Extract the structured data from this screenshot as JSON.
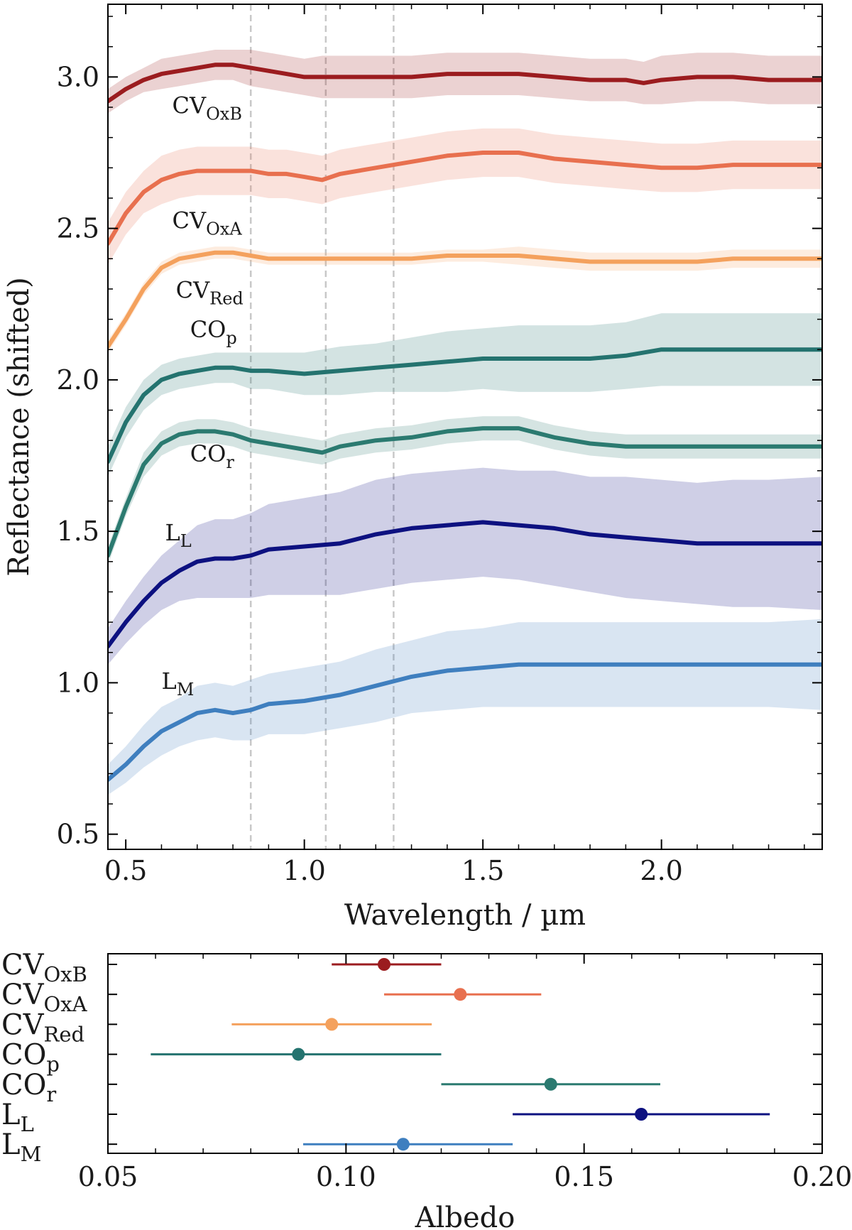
{
  "chart_data": [
    {
      "type": "line",
      "title": "",
      "xlabel": "Wavelength / µm",
      "ylabel": "Reflectance (shifted)",
      "xlim": [
        0.45,
        2.45
      ],
      "ylim": [
        0.45,
        3.24
      ],
      "xticks": [
        0.5,
        1.0,
        1.5,
        2.0
      ],
      "xtick_labels": [
        "0.5",
        "1.0",
        "1.5",
        "2.0"
      ],
      "yticks": [
        0.5,
        1.0,
        1.5,
        2.0,
        2.5,
        3.0
      ],
      "ytick_labels": [
        "0.5",
        "1.0",
        "1.5",
        "2.0",
        "2.5",
        "3.0"
      ],
      "vlines": [
        0.85,
        1.06,
        1.25
      ],
      "series": [
        {
          "name": "CV_OxB",
          "label_main": "CV",
          "label_sub": "OxB",
          "color": "#9b1c1f",
          "label_pos": [
            0.63,
            2.88
          ],
          "x": [
            0.45,
            0.5,
            0.55,
            0.6,
            0.65,
            0.7,
            0.75,
            0.8,
            0.85,
            0.9,
            0.95,
            1.0,
            1.05,
            1.1,
            1.2,
            1.3,
            1.4,
            1.5,
            1.6,
            1.7,
            1.8,
            1.9,
            1.95,
            2.0,
            2.1,
            2.2,
            2.3,
            2.45
          ],
          "y": [
            2.92,
            2.96,
            2.99,
            3.01,
            3.02,
            3.03,
            3.04,
            3.04,
            3.03,
            3.02,
            3.01,
            3.0,
            3.0,
            3.0,
            3.0,
            3.0,
            3.01,
            3.01,
            3.01,
            3.0,
            2.99,
            2.99,
            2.98,
            2.99,
            3.0,
            3.0,
            2.99,
            2.99
          ],
          "band": [
            0.04,
            0.04,
            0.04,
            0.05,
            0.05,
            0.05,
            0.05,
            0.05,
            0.06,
            0.06,
            0.06,
            0.06,
            0.07,
            0.07,
            0.07,
            0.07,
            0.07,
            0.07,
            0.07,
            0.07,
            0.07,
            0.07,
            0.07,
            0.08,
            0.08,
            0.08,
            0.08,
            0.08
          ]
        },
        {
          "name": "CV_OxA",
          "label_main": "CV",
          "label_sub": "OxA",
          "color": "#e8704f",
          "label_pos": [
            0.63,
            2.5
          ],
          "x": [
            0.45,
            0.5,
            0.55,
            0.6,
            0.65,
            0.7,
            0.75,
            0.8,
            0.85,
            0.9,
            0.95,
            1.0,
            1.05,
            1.1,
            1.2,
            1.3,
            1.4,
            1.5,
            1.6,
            1.7,
            1.8,
            1.9,
            2.0,
            2.1,
            2.2,
            2.3,
            2.45
          ],
          "y": [
            2.45,
            2.55,
            2.62,
            2.66,
            2.68,
            2.69,
            2.69,
            2.69,
            2.69,
            2.68,
            2.68,
            2.67,
            2.66,
            2.68,
            2.7,
            2.72,
            2.74,
            2.75,
            2.75,
            2.73,
            2.72,
            2.71,
            2.7,
            2.7,
            2.71,
            2.71,
            2.71
          ],
          "band": [
            0.07,
            0.07,
            0.07,
            0.08,
            0.08,
            0.08,
            0.08,
            0.08,
            0.08,
            0.08,
            0.08,
            0.08,
            0.08,
            0.08,
            0.08,
            0.08,
            0.08,
            0.08,
            0.08,
            0.08,
            0.08,
            0.08,
            0.08,
            0.08,
            0.08,
            0.08,
            0.08
          ]
        },
        {
          "name": "CV_Red",
          "label_main": "CV",
          "label_sub": "Red",
          "color": "#f4a15d",
          "label_pos": [
            0.64,
            2.27
          ],
          "x": [
            0.45,
            0.5,
            0.55,
            0.6,
            0.65,
            0.7,
            0.75,
            0.8,
            0.85,
            0.9,
            1.0,
            1.1,
            1.2,
            1.3,
            1.4,
            1.5,
            1.6,
            1.7,
            1.8,
            1.9,
            2.0,
            2.1,
            2.2,
            2.3,
            2.45
          ],
          "y": [
            2.11,
            2.2,
            2.3,
            2.37,
            2.4,
            2.41,
            2.42,
            2.42,
            2.41,
            2.4,
            2.4,
            2.4,
            2.4,
            2.4,
            2.41,
            2.41,
            2.41,
            2.4,
            2.39,
            2.39,
            2.39,
            2.39,
            2.4,
            2.4,
            2.4
          ],
          "band": [
            0.02,
            0.02,
            0.02,
            0.02,
            0.02,
            0.02,
            0.02,
            0.02,
            0.02,
            0.02,
            0.02,
            0.02,
            0.02,
            0.02,
            0.02,
            0.02,
            0.03,
            0.03,
            0.03,
            0.03,
            0.03,
            0.03,
            0.03,
            0.03,
            0.03
          ]
        },
        {
          "name": "CO_p",
          "label_main": "CO",
          "label_sub": "p",
          "color": "#24736f",
          "label_pos": [
            0.68,
            2.14
          ],
          "x": [
            0.45,
            0.5,
            0.55,
            0.6,
            0.65,
            0.7,
            0.75,
            0.8,
            0.85,
            0.9,
            1.0,
            1.1,
            1.2,
            1.3,
            1.4,
            1.5,
            1.6,
            1.7,
            1.8,
            1.9,
            2.0,
            2.1,
            2.2,
            2.3,
            2.45
          ],
          "y": [
            1.73,
            1.86,
            1.95,
            2.0,
            2.02,
            2.03,
            2.04,
            2.04,
            2.03,
            2.03,
            2.02,
            2.03,
            2.04,
            2.05,
            2.06,
            2.07,
            2.07,
            2.07,
            2.07,
            2.08,
            2.1,
            2.1,
            2.1,
            2.1,
            2.1
          ],
          "band": [
            0.05,
            0.05,
            0.05,
            0.05,
            0.05,
            0.05,
            0.05,
            0.05,
            0.06,
            0.06,
            0.07,
            0.08,
            0.08,
            0.09,
            0.1,
            0.1,
            0.11,
            0.11,
            0.11,
            0.11,
            0.12,
            0.12,
            0.12,
            0.12,
            0.12
          ]
        },
        {
          "name": "CO_r",
          "label_main": "CO",
          "label_sub": "r",
          "color": "#2b7a70",
          "label_pos": [
            0.68,
            1.73
          ],
          "x": [
            0.45,
            0.5,
            0.55,
            0.6,
            0.65,
            0.7,
            0.75,
            0.8,
            0.85,
            0.9,
            0.95,
            1.0,
            1.05,
            1.1,
            1.2,
            1.3,
            1.4,
            1.5,
            1.55,
            1.6,
            1.7,
            1.8,
            1.9,
            2.0,
            2.1,
            2.2,
            2.3,
            2.45
          ],
          "y": [
            1.42,
            1.58,
            1.72,
            1.79,
            1.82,
            1.83,
            1.83,
            1.82,
            1.8,
            1.79,
            1.78,
            1.77,
            1.76,
            1.78,
            1.8,
            1.81,
            1.83,
            1.84,
            1.84,
            1.84,
            1.81,
            1.79,
            1.78,
            1.78,
            1.78,
            1.78,
            1.78,
            1.78
          ],
          "band": [
            0.03,
            0.03,
            0.04,
            0.04,
            0.04,
            0.04,
            0.04,
            0.04,
            0.04,
            0.04,
            0.04,
            0.04,
            0.04,
            0.04,
            0.04,
            0.04,
            0.04,
            0.04,
            0.04,
            0.04,
            0.04,
            0.04,
            0.04,
            0.04,
            0.04,
            0.04,
            0.04,
            0.04
          ]
        },
        {
          "name": "L_L",
          "label_main": "L",
          "label_sub": "L",
          "color": "#0d1180",
          "label_pos": [
            0.61,
            1.47
          ],
          "x": [
            0.45,
            0.5,
            0.55,
            0.6,
            0.65,
            0.7,
            0.75,
            0.8,
            0.85,
            0.9,
            1.0,
            1.1,
            1.2,
            1.3,
            1.4,
            1.5,
            1.6,
            1.7,
            1.8,
            1.9,
            2.0,
            2.1,
            2.2,
            2.3,
            2.45
          ],
          "y": [
            1.12,
            1.2,
            1.27,
            1.33,
            1.37,
            1.4,
            1.41,
            1.41,
            1.42,
            1.44,
            1.45,
            1.46,
            1.49,
            1.51,
            1.52,
            1.53,
            1.52,
            1.51,
            1.49,
            1.48,
            1.47,
            1.46,
            1.46,
            1.46,
            1.46
          ],
          "band": [
            0.06,
            0.07,
            0.08,
            0.09,
            0.1,
            0.12,
            0.13,
            0.13,
            0.14,
            0.15,
            0.16,
            0.17,
            0.18,
            0.18,
            0.18,
            0.18,
            0.18,
            0.19,
            0.19,
            0.2,
            0.2,
            0.2,
            0.21,
            0.21,
            0.22
          ]
        },
        {
          "name": "L_M",
          "label_main": "L",
          "label_sub": "M",
          "color": "#3f7fbf",
          "label_pos": [
            0.6,
            0.98
          ],
          "x": [
            0.45,
            0.5,
            0.55,
            0.6,
            0.65,
            0.7,
            0.75,
            0.8,
            0.85,
            0.9,
            1.0,
            1.1,
            1.2,
            1.3,
            1.4,
            1.5,
            1.6,
            1.7,
            1.8,
            1.9,
            2.0,
            2.1,
            2.2,
            2.3,
            2.45
          ],
          "y": [
            0.68,
            0.73,
            0.79,
            0.84,
            0.87,
            0.9,
            0.91,
            0.9,
            0.91,
            0.93,
            0.94,
            0.96,
            0.99,
            1.02,
            1.04,
            1.05,
            1.06,
            1.06,
            1.06,
            1.06,
            1.06,
            1.06,
            1.06,
            1.06,
            1.06
          ],
          "band": [
            0.05,
            0.06,
            0.07,
            0.08,
            0.08,
            0.09,
            0.09,
            0.09,
            0.1,
            0.1,
            0.11,
            0.11,
            0.12,
            0.12,
            0.13,
            0.13,
            0.14,
            0.14,
            0.14,
            0.14,
            0.14,
            0.14,
            0.14,
            0.14,
            0.15
          ]
        }
      ]
    },
    {
      "type": "scatter",
      "title": "",
      "xlabel": "Albedo",
      "ylabel": "",
      "xlim": [
        0.05,
        0.2
      ],
      "xticks": [
        0.05,
        0.1,
        0.15,
        0.2
      ],
      "xtick_labels": [
        "0.05",
        "0.10",
        "0.15",
        "0.20"
      ],
      "points": [
        {
          "name": "CV_OxB",
          "label_main": "CV",
          "label_sub": "OxB",
          "color": "#9b1c1f",
          "value": 0.108,
          "low": 0.097,
          "high": 0.12
        },
        {
          "name": "CV_OxA",
          "label_main": "CV",
          "label_sub": "OxA",
          "color": "#e8704f",
          "value": 0.124,
          "low": 0.108,
          "high": 0.141
        },
        {
          "name": "CV_Red",
          "label_main": "CV",
          "label_sub": "Red",
          "color": "#f4a15d",
          "value": 0.097,
          "low": 0.076,
          "high": 0.118
        },
        {
          "name": "CO_p",
          "label_main": "CO",
          "label_sub": "p",
          "color": "#24736f",
          "value": 0.09,
          "low": 0.059,
          "high": 0.12
        },
        {
          "name": "CO_r",
          "label_main": "CO",
          "label_sub": "r",
          "color": "#2b7a70",
          "value": 0.143,
          "low": 0.12,
          "high": 0.166
        },
        {
          "name": "L_L",
          "label_main": "L",
          "label_sub": "L",
          "color": "#0d1180",
          "value": 0.162,
          "low": 0.135,
          "high": 0.189
        },
        {
          "name": "L_M",
          "label_main": "L",
          "label_sub": "M",
          "color": "#3f7fbf",
          "value": 0.112,
          "low": 0.091,
          "high": 0.135
        }
      ]
    }
  ]
}
